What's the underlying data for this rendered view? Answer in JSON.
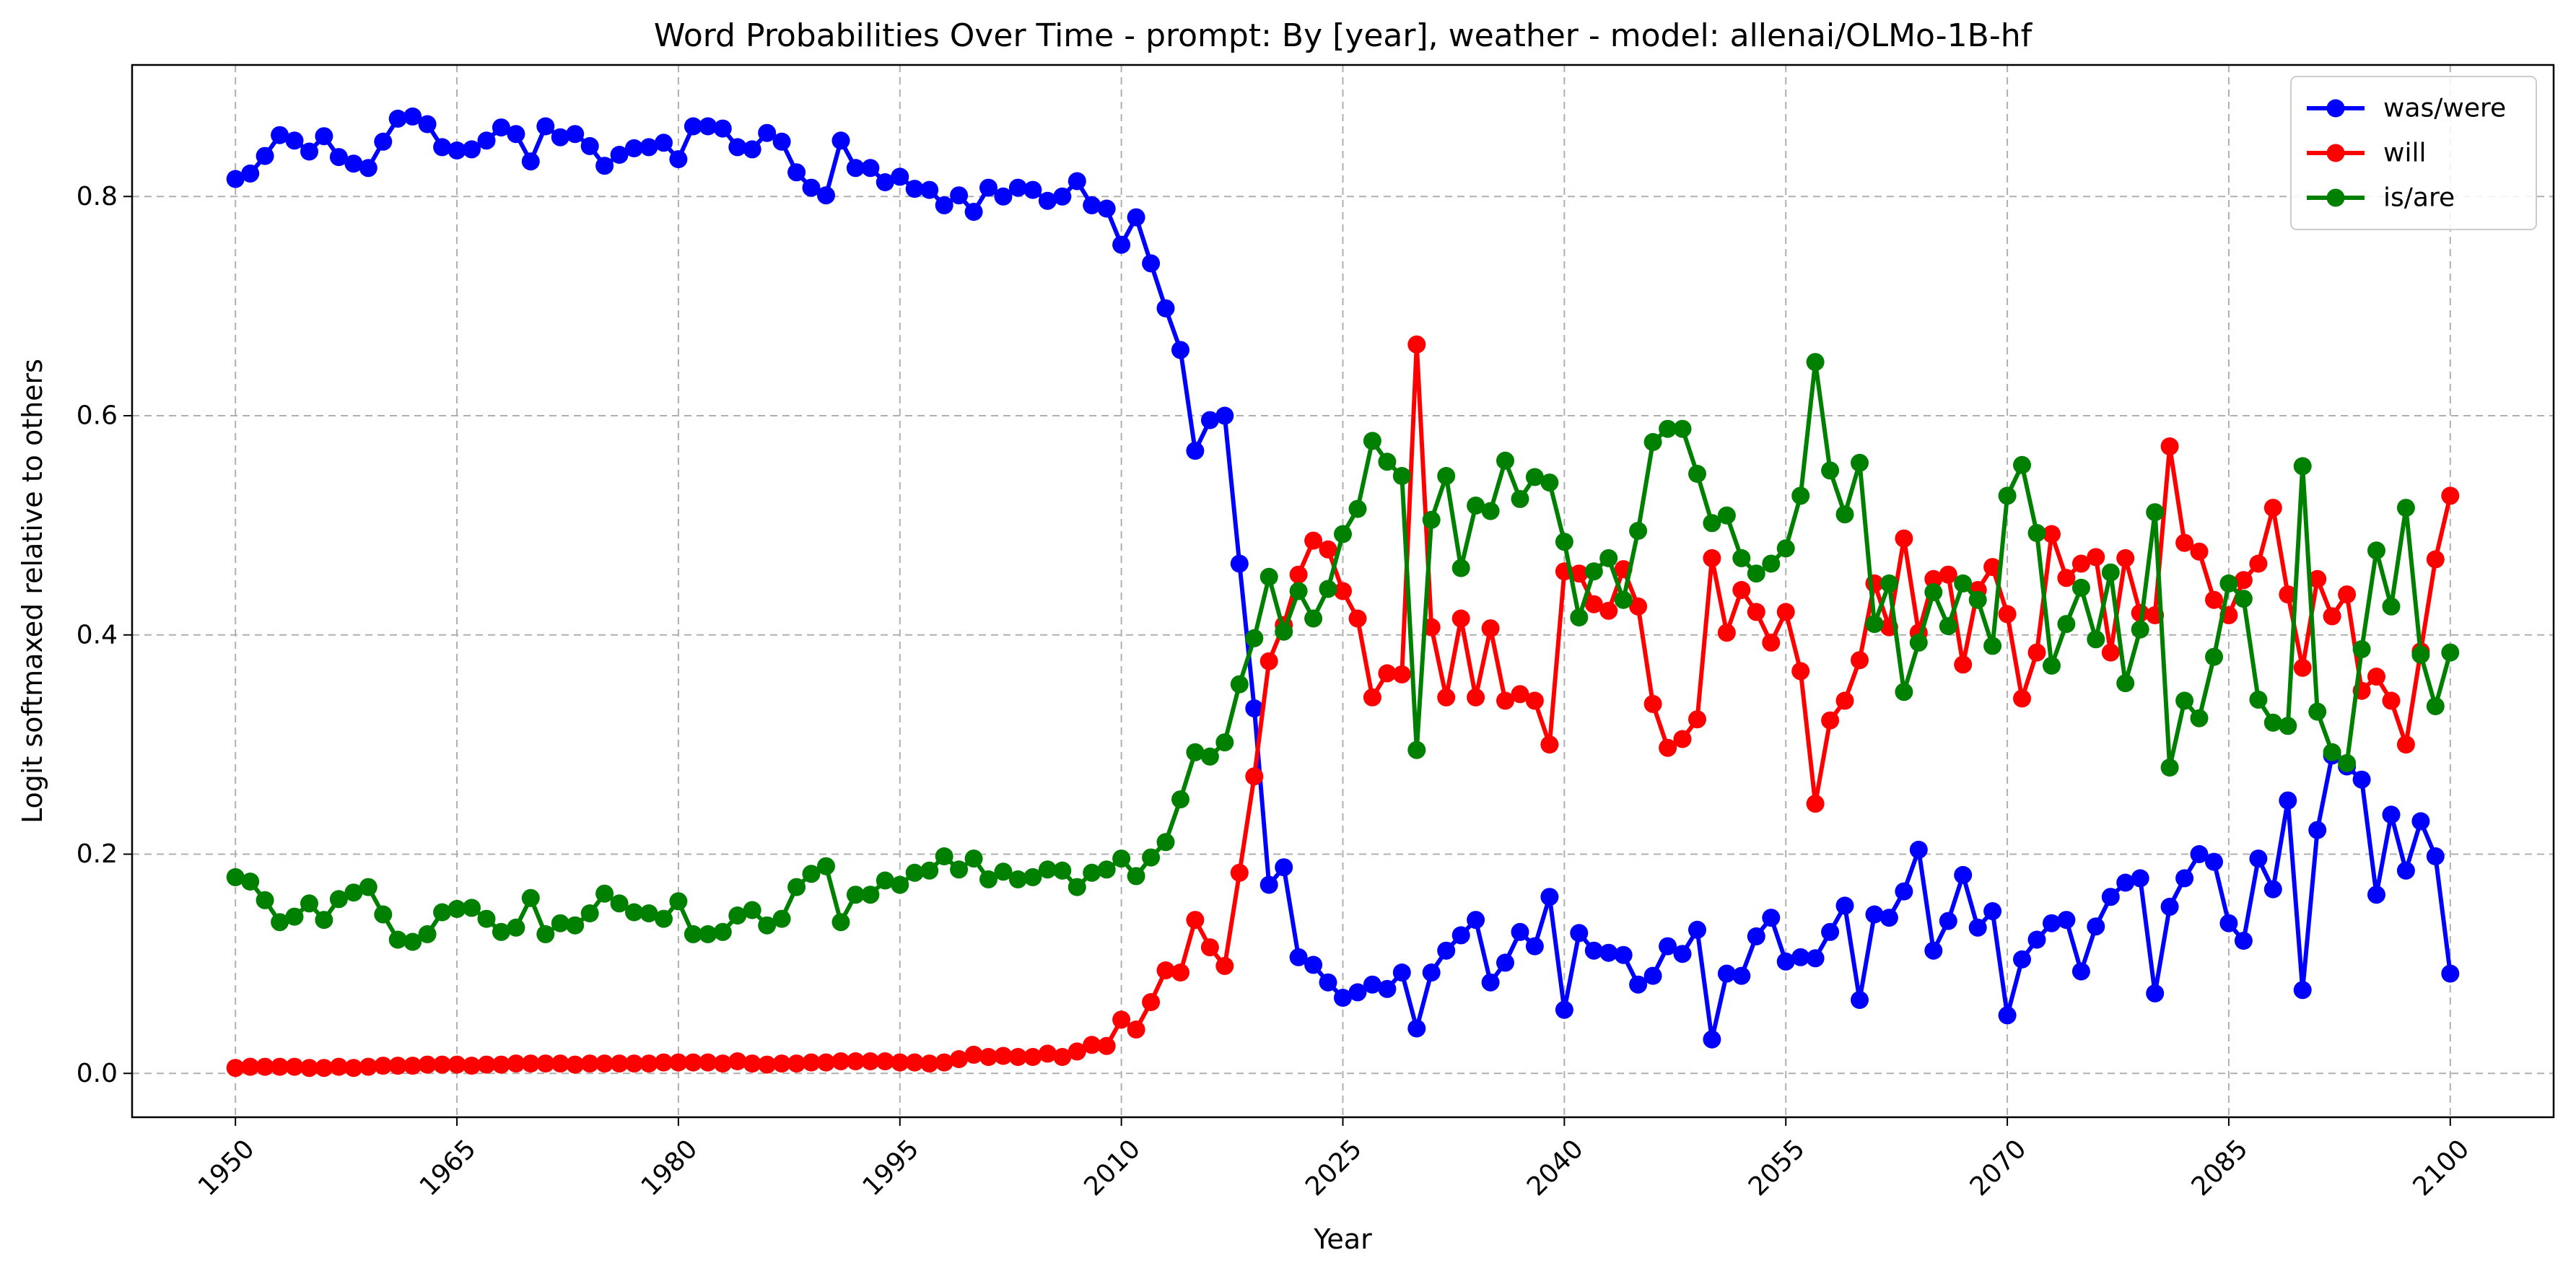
{
  "chart_data": {
    "type": "line",
    "title": "Word Probabilities Over Time - prompt: By [year], weather - model: allenai/OLMo-1B-hf",
    "xlabel": "Year",
    "ylabel": "Logit softmaxed relative to others",
    "xlim": [
      1943,
      2107
    ],
    "ylim": [
      -0.04,
      0.92
    ],
    "x_ticks": [
      1950,
      1965,
      1980,
      1995,
      2010,
      2025,
      2040,
      2055,
      2070,
      2085,
      2100
    ],
    "y_ticks": [
      0.0,
      0.2,
      0.4,
      0.6,
      0.8
    ],
    "y_tick_labels": [
      "0.0",
      "0.2",
      "0.4",
      "0.6",
      "0.8"
    ],
    "grid": true,
    "legend_position": "top-right",
    "x": [
      1950,
      1951,
      1952,
      1953,
      1954,
      1955,
      1956,
      1957,
      1958,
      1959,
      1960,
      1961,
      1962,
      1963,
      1964,
      1965,
      1966,
      1967,
      1968,
      1969,
      1970,
      1971,
      1972,
      1973,
      1974,
      1975,
      1976,
      1977,
      1978,
      1979,
      1980,
      1981,
      1982,
      1983,
      1984,
      1985,
      1986,
      1987,
      1988,
      1989,
      1990,
      1991,
      1992,
      1993,
      1994,
      1995,
      1996,
      1997,
      1998,
      1999,
      2000,
      2001,
      2002,
      2003,
      2004,
      2005,
      2006,
      2007,
      2008,
      2009,
      2010,
      2011,
      2012,
      2013,
      2014,
      2015,
      2016,
      2017,
      2018,
      2019,
      2020,
      2021,
      2022,
      2023,
      2024,
      2025,
      2026,
      2027,
      2028,
      2029,
      2030,
      2031,
      2032,
      2033,
      2034,
      2035,
      2036,
      2037,
      2038,
      2039,
      2040,
      2041,
      2042,
      2043,
      2044,
      2045,
      2046,
      2047,
      2048,
      2049,
      2050,
      2051,
      2052,
      2053,
      2054,
      2055,
      2056,
      2057,
      2058,
      2059,
      2060,
      2061,
      2062,
      2063,
      2064,
      2065,
      2066,
      2067,
      2068,
      2069,
      2070,
      2071,
      2072,
      2073,
      2074,
      2075,
      2076,
      2077,
      2078,
      2079,
      2080,
      2081,
      2082,
      2083,
      2084,
      2085,
      2086,
      2087,
      2088,
      2089,
      2090,
      2091,
      2092,
      2093,
      2094,
      2095,
      2096,
      2097,
      2098,
      2099,
      2100
    ],
    "series": [
      {
        "name": "was/were",
        "color": "#0000ff",
        "values": [
          0.816,
          0.821,
          0.837,
          0.856,
          0.851,
          0.841,
          0.855,
          0.836,
          0.83,
          0.826,
          0.85,
          0.871,
          0.873,
          0.866,
          0.845,
          0.842,
          0.843,
          0.851,
          0.863,
          0.857,
          0.832,
          0.864,
          0.854,
          0.857,
          0.846,
          0.828,
          0.838,
          0.844,
          0.845,
          0.849,
          0.834,
          0.864,
          0.864,
          0.862,
          0.845,
          0.843,
          0.858,
          0.85,
          0.822,
          0.808,
          0.801,
          0.851,
          0.826,
          0.826,
          0.813,
          0.818,
          0.807,
          0.806,
          0.792,
          0.801,
          0.786,
          0.808,
          0.8,
          0.808,
          0.806,
          0.796,
          0.8,
          0.814,
          0.792,
          0.789,
          0.756,
          0.781,
          0.739,
          0.698,
          0.66,
          0.568,
          0.596,
          0.6,
          0.465,
          0.333,
          0.172,
          0.188,
          0.106,
          0.099,
          0.083,
          0.069,
          0.074,
          0.081,
          0.077,
          0.092,
          0.041,
          0.092,
          0.112,
          0.126,
          0.14,
          0.083,
          0.101,
          0.129,
          0.116,
          0.161,
          0.058,
          0.128,
          0.112,
          0.11,
          0.108,
          0.081,
          0.089,
          0.116,
          0.109,
          0.131,
          0.031,
          0.091,
          0.089,
          0.125,
          0.142,
          0.102,
          0.106,
          0.105,
          0.129,
          0.153,
          0.067,
          0.145,
          0.142,
          0.166,
          0.204,
          0.112,
          0.139,
          0.181,
          0.133,
          0.148,
          0.053,
          0.104,
          0.122,
          0.137,
          0.14,
          0.093,
          0.134,
          0.161,
          0.174,
          0.178,
          0.073,
          0.152,
          0.178,
          0.2,
          0.193,
          0.137,
          0.121,
          0.196,
          0.168,
          0.249,
          0.076,
          0.222,
          0.29,
          0.28,
          0.268,
          0.163,
          0.236,
          0.185,
          0.23,
          0.198,
          0.091
        ]
      },
      {
        "name": "will",
        "color": "#ff0000",
        "values": [
          0.005,
          0.006,
          0.006,
          0.006,
          0.006,
          0.005,
          0.005,
          0.006,
          0.005,
          0.006,
          0.007,
          0.007,
          0.007,
          0.008,
          0.008,
          0.008,
          0.007,
          0.008,
          0.008,
          0.009,
          0.009,
          0.009,
          0.009,
          0.008,
          0.009,
          0.009,
          0.009,
          0.009,
          0.009,
          0.01,
          0.01,
          0.01,
          0.01,
          0.009,
          0.011,
          0.009,
          0.008,
          0.009,
          0.009,
          0.01,
          0.01,
          0.011,
          0.011,
          0.011,
          0.011,
          0.01,
          0.01,
          0.009,
          0.01,
          0.013,
          0.017,
          0.015,
          0.016,
          0.015,
          0.015,
          0.018,
          0.015,
          0.02,
          0.026,
          0.025,
          0.049,
          0.04,
          0.065,
          0.094,
          0.092,
          0.14,
          0.115,
          0.098,
          0.183,
          0.271,
          0.376,
          0.409,
          0.455,
          0.486,
          0.478,
          0.44,
          0.415,
          0.343,
          0.365,
          0.364,
          0.665,
          0.407,
          0.343,
          0.415,
          0.343,
          0.406,
          0.34,
          0.346,
          0.34,
          0.3,
          0.458,
          0.456,
          0.428,
          0.422,
          0.46,
          0.426,
          0.337,
          0.297,
          0.305,
          0.323,
          0.47,
          0.402,
          0.441,
          0.421,
          0.393,
          0.421,
          0.367,
          0.246,
          0.322,
          0.34,
          0.377,
          0.447,
          0.407,
          0.488,
          0.402,
          0.451,
          0.455,
          0.373,
          0.441,
          0.462,
          0.419,
          0.342,
          0.384,
          0.492,
          0.452,
          0.465,
          0.471,
          0.384,
          0.47,
          0.42,
          0.418,
          0.572,
          0.484,
          0.476,
          0.432,
          0.418,
          0.45,
          0.465,
          0.516,
          0.437,
          0.37,
          0.451,
          0.417,
          0.437,
          0.349,
          0.362,
          0.34,
          0.3,
          0.385,
          0.469,
          0.527
        ]
      },
      {
        "name": "is/are",
        "color": "#008000",
        "values": [
          0.179,
          0.175,
          0.158,
          0.138,
          0.143,
          0.155,
          0.14,
          0.159,
          0.165,
          0.17,
          0.145,
          0.122,
          0.12,
          0.127,
          0.147,
          0.15,
          0.151,
          0.141,
          0.129,
          0.133,
          0.16,
          0.127,
          0.137,
          0.135,
          0.146,
          0.164,
          0.155,
          0.147,
          0.146,
          0.141,
          0.157,
          0.127,
          0.127,
          0.129,
          0.144,
          0.149,
          0.135,
          0.141,
          0.17,
          0.182,
          0.189,
          0.138,
          0.163,
          0.163,
          0.176,
          0.172,
          0.183,
          0.185,
          0.198,
          0.186,
          0.196,
          0.177,
          0.184,
          0.177,
          0.179,
          0.186,
          0.185,
          0.17,
          0.183,
          0.186,
          0.196,
          0.18,
          0.197,
          0.211,
          0.25,
          0.293,
          0.289,
          0.302,
          0.355,
          0.397,
          0.453,
          0.403,
          0.44,
          0.415,
          0.442,
          0.492,
          0.515,
          0.577,
          0.558,
          0.545,
          0.295,
          0.505,
          0.545,
          0.461,
          0.518,
          0.513,
          0.559,
          0.524,
          0.544,
          0.539,
          0.485,
          0.416,
          0.458,
          0.47,
          0.432,
          0.495,
          0.576,
          0.588,
          0.588,
          0.547,
          0.502,
          0.509,
          0.47,
          0.456,
          0.465,
          0.479,
          0.527,
          0.649,
          0.55,
          0.51,
          0.557,
          0.41,
          0.447,
          0.348,
          0.393,
          0.439,
          0.408,
          0.447,
          0.432,
          0.39,
          0.527,
          0.555,
          0.493,
          0.372,
          0.41,
          0.443,
          0.396,
          0.457,
          0.356,
          0.405,
          0.512,
          0.279,
          0.34,
          0.324,
          0.38,
          0.447,
          0.433,
          0.341,
          0.32,
          0.317,
          0.554,
          0.33,
          0.293,
          0.283,
          0.387,
          0.477,
          0.426,
          0.516,
          0.382,
          0.335,
          0.384
        ]
      }
    ]
  }
}
